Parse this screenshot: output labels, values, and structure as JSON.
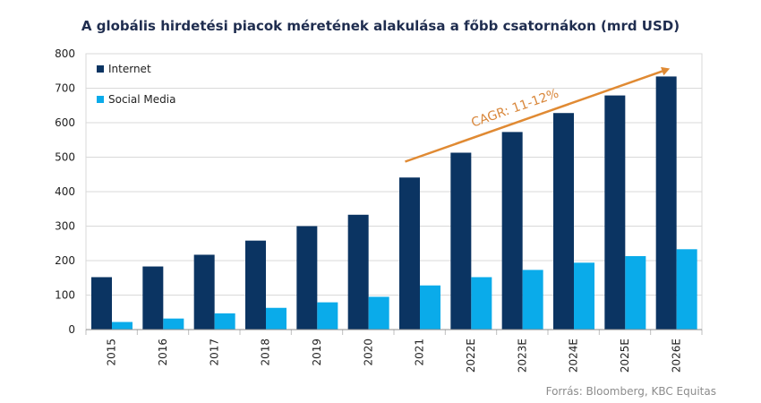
{
  "chart_data": {
    "type": "bar",
    "title": "A globális hirdetési piacok méretének alakulása a főbb csatornákon  (mrd USD)",
    "categories": [
      "2015",
      "2016",
      "2017",
      "2018",
      "2019",
      "2020",
      "2021",
      "2022E",
      "2023E",
      "2024E",
      "2025E",
      "2026E"
    ],
    "series": [
      {
        "name": "Internet",
        "color": "#0b3462",
        "values": [
          152,
          183,
          217,
          258,
          300,
          333,
          441,
          513,
          573,
          628,
          679,
          734
        ]
      },
      {
        "name": "Social Media",
        "color": "#0aabea",
        "values": [
          22,
          32,
          47,
          63,
          79,
          95,
          128,
          152,
          173,
          194,
          213,
          233
        ]
      }
    ],
    "ylim": [
      0,
      800
    ],
    "yticks": [
      0,
      100,
      200,
      300,
      400,
      500,
      600,
      700,
      800
    ],
    "grid": true,
    "legend": "top-left",
    "annotation": {
      "text": "CAGR: 11-12%",
      "color": "#e08a33",
      "from_category": "2021",
      "to_category": "2026E"
    }
  },
  "source": "Forrás: Bloomberg, KBC Equitas"
}
